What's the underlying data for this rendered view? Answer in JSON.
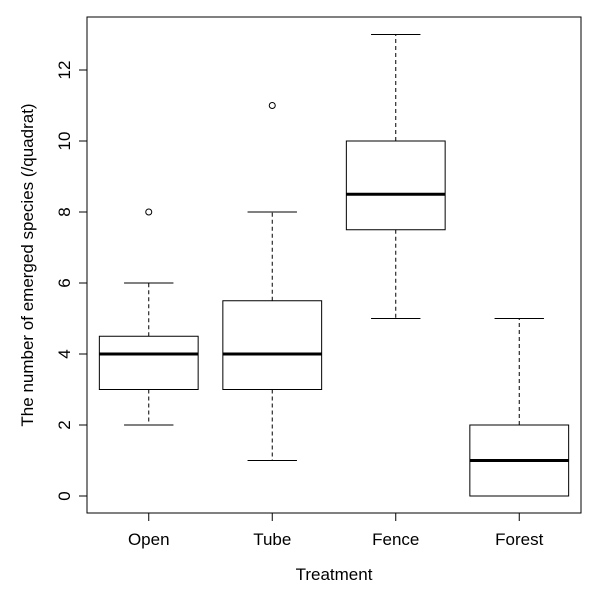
{
  "chart_data": {
    "type": "boxplot",
    "title": "",
    "xlabel": "Treatment",
    "ylabel": "The number of emerged species (/quadrat)",
    "ylim": [
      -0.5,
      13.5
    ],
    "yticks": [
      0,
      2,
      4,
      6,
      8,
      10,
      12
    ],
    "ytick_labels": [
      "0",
      "2",
      "4",
      "6",
      "8",
      "10",
      "12"
    ],
    "categories": [
      "Open",
      "Tube",
      "Fence",
      "Forest"
    ],
    "boxes": [
      {
        "category": "Open",
        "whisker_low": 2,
        "q1": 3,
        "median": 4,
        "q3": 4.5,
        "whisker_high": 6,
        "outliers": [
          8
        ]
      },
      {
        "category": "Tube",
        "whisker_low": 1,
        "q1": 3,
        "median": 4,
        "q3": 5.5,
        "whisker_high": 8,
        "outliers": [
          11
        ]
      },
      {
        "category": "Fence",
        "whisker_low": 5,
        "q1": 7.5,
        "median": 8.5,
        "q3": 10,
        "whisker_high": 13,
        "outliers": []
      },
      {
        "category": "Forest",
        "whisker_low": 0,
        "q1": 0,
        "median": 1,
        "q3": 2,
        "whisker_high": 5,
        "outliers": []
      }
    ],
    "grid": false,
    "legend": "none"
  }
}
